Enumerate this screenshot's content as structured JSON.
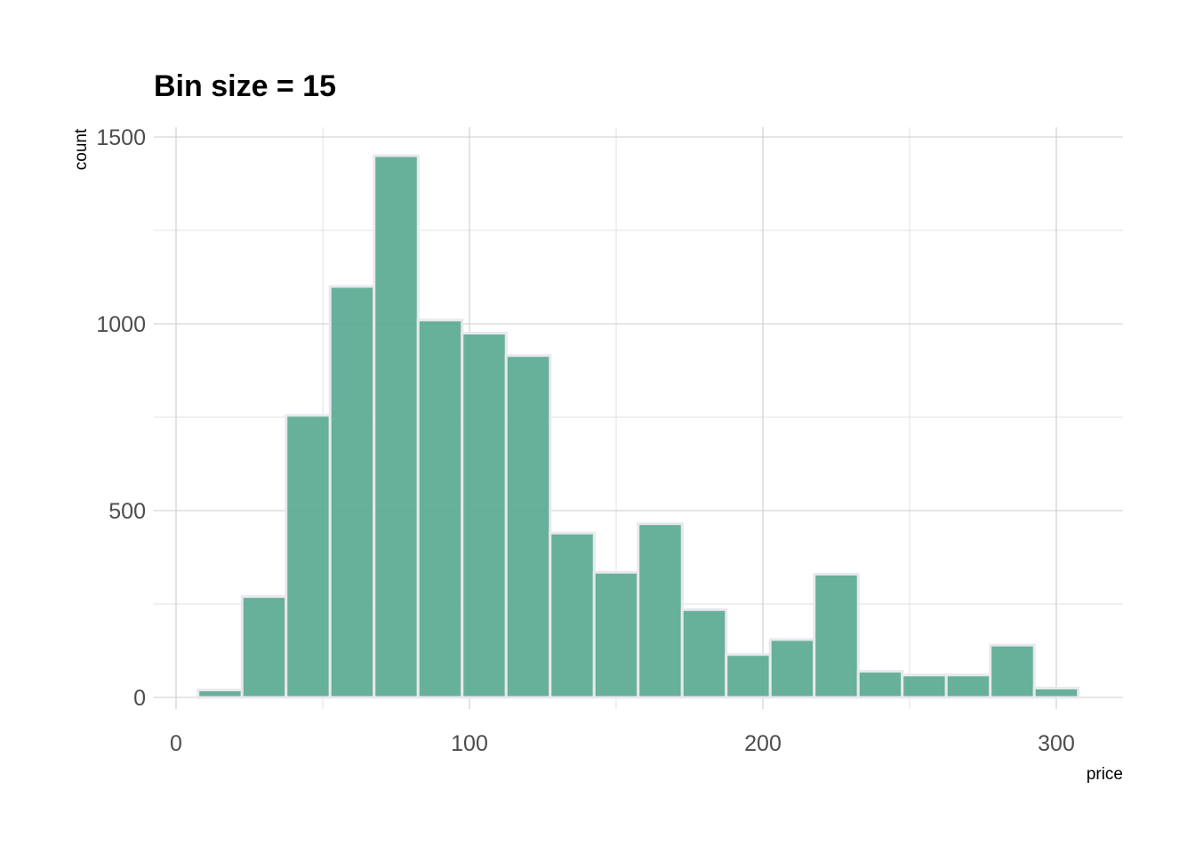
{
  "chart_data": {
    "type": "bar",
    "title": "Bin size = 15",
    "xlabel": "price",
    "ylabel": "count",
    "bin_width": 15,
    "bins": [
      {
        "start": 7.5,
        "end": 22.5,
        "count": 20
      },
      {
        "start": 22.5,
        "end": 37.5,
        "count": 270
      },
      {
        "start": 37.5,
        "end": 52.5,
        "count": 755
      },
      {
        "start": 52.5,
        "end": 67.5,
        "count": 1100
      },
      {
        "start": 67.5,
        "end": 82.5,
        "count": 1450
      },
      {
        "start": 82.5,
        "end": 97.5,
        "count": 1010
      },
      {
        "start": 97.5,
        "end": 112.5,
        "count": 975
      },
      {
        "start": 112.5,
        "end": 127.5,
        "count": 915
      },
      {
        "start": 127.5,
        "end": 142.5,
        "count": 440
      },
      {
        "start": 142.5,
        "end": 157.5,
        "count": 335
      },
      {
        "start": 157.5,
        "end": 172.5,
        "count": 465
      },
      {
        "start": 172.5,
        "end": 187.5,
        "count": 235
      },
      {
        "start": 187.5,
        "end": 202.5,
        "count": 115
      },
      {
        "start": 202.5,
        "end": 217.5,
        "count": 155
      },
      {
        "start": 217.5,
        "end": 232.5,
        "count": 330
      },
      {
        "start": 232.5,
        "end": 247.5,
        "count": 70
      },
      {
        "start": 247.5,
        "end": 262.5,
        "count": 60
      },
      {
        "start": 262.5,
        "end": 277.5,
        "count": 60
      },
      {
        "start": 277.5,
        "end": 292.5,
        "count": 140
      },
      {
        "start": 292.5,
        "end": 307.5,
        "count": 25
      }
    ],
    "xlim": [
      0,
      315
    ],
    "ylim": [
      0,
      1500
    ],
    "x_ticks": [
      0,
      100,
      200,
      300
    ],
    "y_ticks": [
      0,
      500,
      1000,
      1500
    ],
    "x_tick_labels": [
      "0",
      "100",
      "200",
      "300"
    ],
    "y_tick_labels": [
      "0",
      "500",
      "1000",
      "1500"
    ],
    "bar_color": "#5aa991",
    "bar_outline_color": "#e8e8ee",
    "grid": true,
    "legend": "none"
  }
}
